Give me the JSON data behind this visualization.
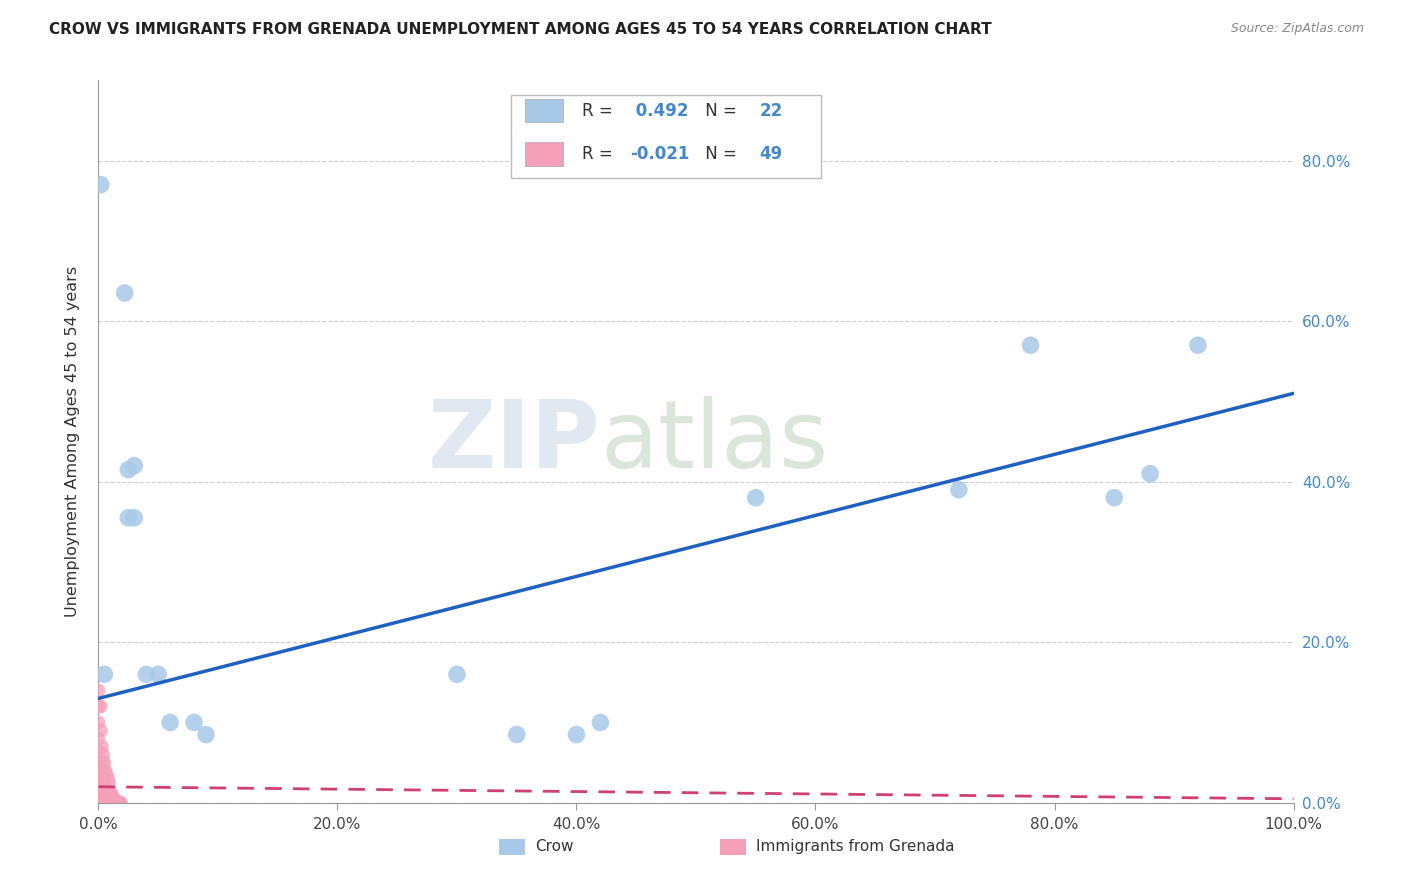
{
  "title": "CROW VS IMMIGRANTS FROM GRENADA UNEMPLOYMENT AMONG AGES 45 TO 54 YEARS CORRELATION CHART",
  "source": "Source: ZipAtlas.com",
  "ylabel": "Unemployment Among Ages 45 to 54 years",
  "crow_R": 0.492,
  "crow_N": 22,
  "grenada_R": -0.021,
  "grenada_N": 49,
  "crow_color": "#a8c8e8",
  "grenada_color": "#f4a0b8",
  "trendline_crow_color": "#2060c0",
  "trendline_grenada_color": "#d04070",
  "watermark_zip": "ZIP",
  "watermark_atlas": "atlas",
  "crow_points": [
    [
      0.002,
      0.77
    ],
    [
      0.022,
      0.635
    ],
    [
      0.025,
      0.415
    ],
    [
      0.025,
      0.355
    ],
    [
      0.03,
      0.42
    ],
    [
      0.03,
      0.355
    ],
    [
      0.04,
      0.16
    ],
    [
      0.05,
      0.16
    ],
    [
      0.06,
      0.1
    ],
    [
      0.08,
      0.1
    ],
    [
      0.09,
      0.085
    ],
    [
      0.3,
      0.16
    ],
    [
      0.35,
      0.085
    ],
    [
      0.4,
      0.085
    ],
    [
      0.42,
      0.1
    ],
    [
      0.55,
      0.38
    ],
    [
      0.72,
      0.39
    ],
    [
      0.78,
      0.57
    ],
    [
      0.85,
      0.38
    ],
    [
      0.88,
      0.41
    ],
    [
      0.92,
      0.57
    ],
    [
      0.005,
      0.16
    ]
  ],
  "grenada_points": [
    [
      0.0,
      0.14
    ],
    [
      0.0,
      0.12
    ],
    [
      0.0,
      0.1
    ],
    [
      0.0,
      0.08
    ],
    [
      0.0,
      0.065
    ],
    [
      0.0,
      0.05
    ],
    [
      0.0,
      0.04
    ],
    [
      0.0,
      0.03
    ],
    [
      0.0,
      0.02
    ],
    [
      0.0,
      0.015
    ],
    [
      0.0,
      0.01
    ],
    [
      0.0,
      0.008
    ],
    [
      0.0,
      0.005
    ],
    [
      0.0,
      0.003
    ],
    [
      0.0,
      0.001
    ],
    [
      0.0,
      0.0
    ],
    [
      0.002,
      0.12
    ],
    [
      0.002,
      0.09
    ],
    [
      0.003,
      0.07
    ],
    [
      0.003,
      0.05
    ],
    [
      0.003,
      0.03
    ],
    [
      0.003,
      0.015
    ],
    [
      0.003,
      0.005
    ],
    [
      0.003,
      0.002
    ],
    [
      0.004,
      0.06
    ],
    [
      0.004,
      0.03
    ],
    [
      0.004,
      0.01
    ],
    [
      0.005,
      0.05
    ],
    [
      0.005,
      0.02
    ],
    [
      0.005,
      0.008
    ],
    [
      0.006,
      0.04
    ],
    [
      0.006,
      0.015
    ],
    [
      0.007,
      0.035
    ],
    [
      0.007,
      0.01
    ],
    [
      0.008,
      0.03
    ],
    [
      0.008,
      0.008
    ],
    [
      0.009,
      0.025
    ],
    [
      0.009,
      0.005
    ],
    [
      0.01,
      0.015
    ],
    [
      0.01,
      0.003
    ],
    [
      0.011,
      0.01
    ],
    [
      0.012,
      0.008
    ],
    [
      0.013,
      0.005
    ],
    [
      0.014,
      0.003
    ],
    [
      0.015,
      0.002
    ],
    [
      0.016,
      0.001
    ],
    [
      0.017,
      0.0
    ],
    [
      0.018,
      0.0
    ],
    [
      0.019,
      0.0
    ]
  ],
  "crow_trend_x": [
    0.0,
    1.0
  ],
  "crow_trend_y": [
    0.13,
    0.51
  ],
  "grenada_trend_x": [
    0.0,
    1.0
  ],
  "grenada_trend_y": [
    0.02,
    0.005
  ],
  "xlim": [
    0.0,
    1.0
  ],
  "ylim": [
    0.0,
    0.9
  ],
  "xticks": [
    0.0,
    0.2,
    0.4,
    0.6,
    0.8,
    1.0
  ],
  "yticks": [
    0.0,
    0.2,
    0.4,
    0.6,
    0.8
  ],
  "xticklabels": [
    "0.0%",
    "20.0%",
    "40.0%",
    "60.0%",
    "80.0%",
    "100.0%"
  ],
  "yticklabels_right": [
    "0.0%",
    "20.0%",
    "40.0%",
    "60.0%",
    "80.0%"
  ]
}
